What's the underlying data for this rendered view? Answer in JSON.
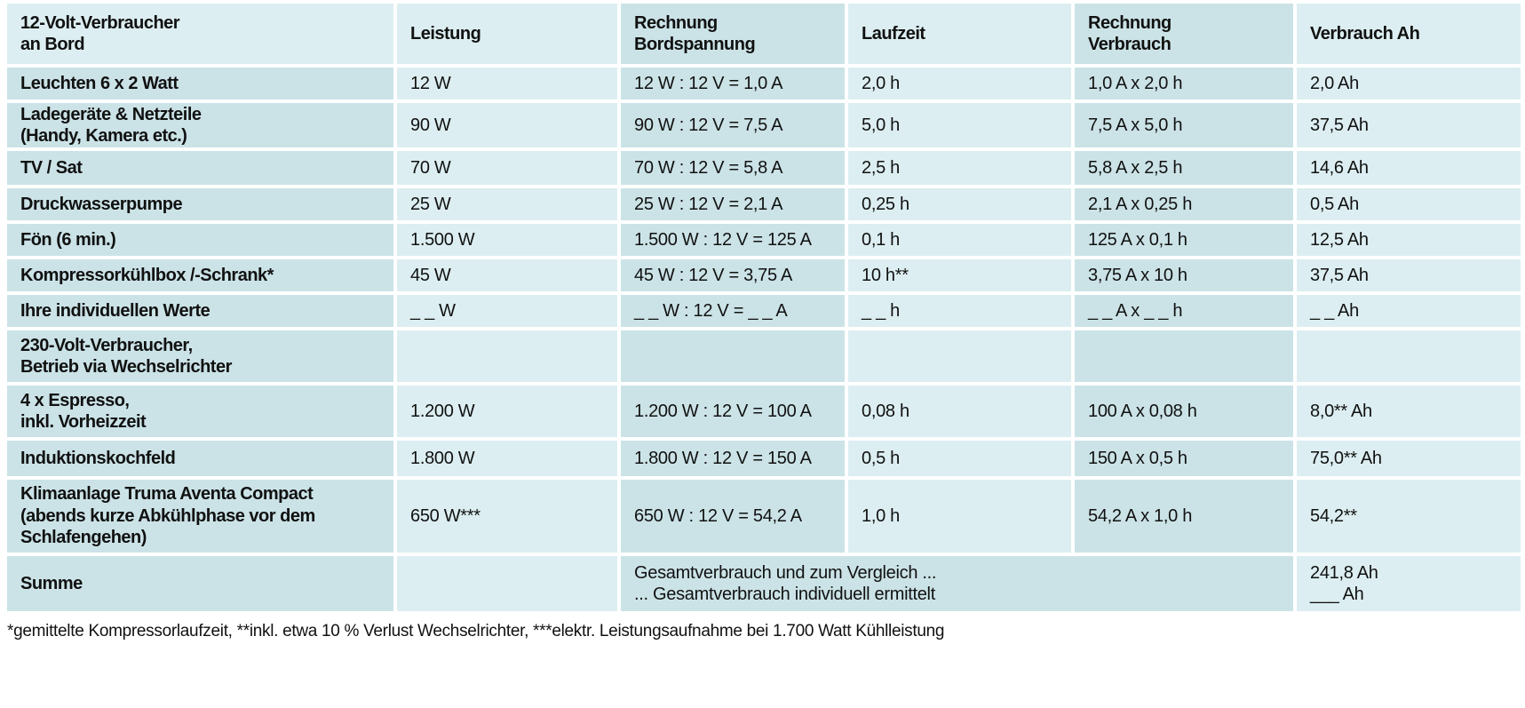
{
  "colors": {
    "cell_dark": "#cbe3e7",
    "cell_light": "#dceef1",
    "text": "#111111",
    "background": "#ffffff"
  },
  "table": {
    "header": {
      "consumer": "12-Volt-Verbraucher\nan Bord",
      "leistung": "Leistung",
      "rechnung_bordspannung": "Rechnung\nBordspannung",
      "laufzeit": "Laufzeit",
      "rechnung_verbrauch": "Rechnung\nVerbrauch",
      "verbrauch_ah": "Verbrauch Ah"
    },
    "rows": [
      {
        "label": "Leuchten 6 x 2 Watt",
        "leistung": "12 W",
        "rechnung_bordspannung": "12 W : 12 V = 1,0 A",
        "laufzeit": "2,0 h",
        "rechnung_verbrauch": "1,0 A x 2,0 h",
        "verbrauch_ah": "2,0 Ah"
      },
      {
        "label": "Ladegeräte & Netzteile\n(Handy, Kamera etc.)",
        "leistung": "90 W",
        "rechnung_bordspannung": "90 W : 12 V = 7,5 A",
        "laufzeit": "5,0 h",
        "rechnung_verbrauch": "7,5 A x 5,0 h",
        "verbrauch_ah": "37,5 Ah"
      },
      {
        "label": "TV / Sat",
        "leistung": "70 W",
        "rechnung_bordspannung": "70 W : 12 V = 5,8 A",
        "laufzeit": "2,5 h",
        "rechnung_verbrauch": "5,8 A x 2,5 h",
        "verbrauch_ah": "14,6 Ah"
      },
      {
        "label": "Druckwasserpumpe",
        "leistung": "25 W",
        "rechnung_bordspannung": "25 W : 12 V = 2,1 A",
        "laufzeit": "0,25 h",
        "rechnung_verbrauch": "2,1 A x 0,25 h",
        "verbrauch_ah": "0,5 Ah"
      },
      {
        "label": "Fön (6 min.)",
        "leistung": "1.500 W",
        "rechnung_bordspannung": "1.500 W : 12 V = 125 A",
        "laufzeit": "0,1 h",
        "rechnung_verbrauch": "125 A x 0,1 h",
        "verbrauch_ah": "12,5 Ah"
      },
      {
        "label": "Kompressorkühlbox /-Schrank*",
        "leistung": "45 W",
        "rechnung_bordspannung": "45 W : 12 V = 3,75 A",
        "laufzeit": "10 h**",
        "rechnung_verbrauch": "3,75 A x 10 h",
        "verbrauch_ah": "37,5 Ah"
      },
      {
        "label": "Ihre individuellen Werte",
        "leistung": "_ _ W",
        "rechnung_bordspannung": "_ _ W : 12 V = _ _ A",
        "laufzeit": "_ _ h",
        "rechnung_verbrauch": "_ _ A x _ _ h",
        "verbrauch_ah": "_ _ Ah"
      },
      {
        "label": "230-Volt-Verbraucher,\nBetrieb via Wechselrichter",
        "leistung": "",
        "rechnung_bordspannung": "",
        "laufzeit": "",
        "rechnung_verbrauch": "",
        "verbrauch_ah": ""
      },
      {
        "label": "4 x Espresso,\ninkl. Vorheizzeit",
        "leistung": "1.200 W",
        "rechnung_bordspannung": "1.200 W : 12 V = 100 A",
        "laufzeit": "0,08 h",
        "rechnung_verbrauch": "100 A x 0,08 h",
        "verbrauch_ah": "8,0** Ah"
      },
      {
        "label": "Induktionskochfeld",
        "leistung": "1.800 W",
        "rechnung_bordspannung": "1.800 W : 12 V = 150 A",
        "laufzeit": "0,5 h",
        "rechnung_verbrauch": "150 A x 0,5 h",
        "verbrauch_ah": "75,0** Ah"
      },
      {
        "label": "Klimaanlage Truma Aventa Compact\n(abends kurze Abkühlphase vor dem\nSchlafengehen)",
        "leistung": "650 W***",
        "rechnung_bordspannung": "650 W : 12 V = 54,2 A",
        "laufzeit": "1,0 h",
        "rechnung_verbrauch": "54,2 A x 1,0 h",
        "verbrauch_ah": "54,2**"
      }
    ],
    "sum_row": {
      "label": "Summe",
      "leistung": "",
      "merged_text": "Gesamtverbrauch und zum Vergleich ...\n... Gesamtverbrauch individuell ermittelt",
      "verbrauch_ah": "241,8 Ah\n___ Ah"
    },
    "footnote": "*gemittelte Kompressorlaufzeit, **inkl. etwa 10 % Verlust Wechselrichter, ***elektr. Leistungsaufnahme bei 1.700 Watt Kühlleistung"
  }
}
